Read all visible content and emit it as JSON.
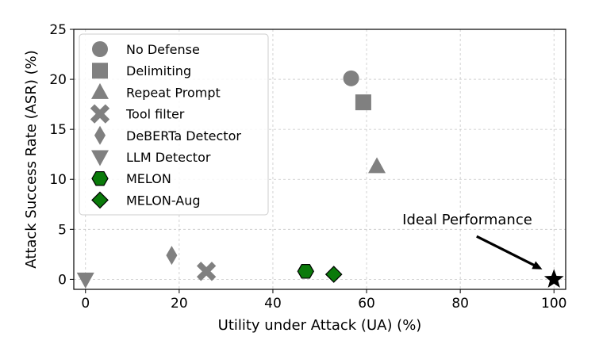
{
  "chart_data": {
    "type": "scatter",
    "title": "",
    "xlabel": "Utility under Attack (UA) (%)",
    "ylabel": "Attack Success Rate (ASR) (%)",
    "xlim": [
      -2.5,
      102.5
    ],
    "ylim": [
      -1,
      25
    ],
    "xticks": [
      0,
      20,
      40,
      60,
      80,
      100
    ],
    "yticks": [
      0,
      5,
      10,
      15,
      20,
      25
    ],
    "grid": true,
    "legend_position": "upper-left",
    "series": [
      {
        "name": "No Defense",
        "marker": "circle",
        "color": "#808080",
        "x": 56.7,
        "y": 20.1
      },
      {
        "name": "Delimiting",
        "marker": "square",
        "color": "#808080",
        "x": 59.3,
        "y": 17.7
      },
      {
        "name": "Repeat Prompt",
        "marker": "triangle-up",
        "color": "#808080",
        "x": 62.2,
        "y": 11.3
      },
      {
        "name": "Tool filter",
        "marker": "x",
        "color": "#808080",
        "x": 25.8,
        "y": 0.8
      },
      {
        "name": "DeBERTa Detector",
        "marker": "thin-diamond",
        "color": "#808080",
        "x": 18.4,
        "y": 2.4
      },
      {
        "name": "LLM Detector",
        "marker": "triangle-down",
        "color": "#808080",
        "x": 0.0,
        "y": 0.0
      },
      {
        "name": "MELON",
        "marker": "hexagon",
        "color": "#0a7a0a",
        "x": 47.0,
        "y": 0.8
      },
      {
        "name": "MELON-Aug",
        "marker": "diamond",
        "color": "#0a7a0a",
        "x": 53.0,
        "y": 0.5
      }
    ],
    "ideal_point": {
      "x": 100,
      "y": 0,
      "marker": "star",
      "color": "#000000"
    },
    "annotations": [
      {
        "text": "Ideal Performance",
        "text_x": 81.5,
        "text_y": 5.5,
        "arrow_from": [
          83.5,
          4.3
        ],
        "arrow_to": [
          97.5,
          1.0
        ]
      }
    ]
  }
}
